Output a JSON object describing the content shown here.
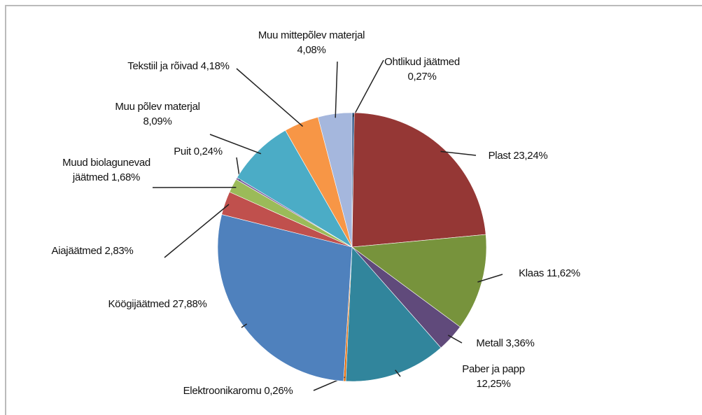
{
  "chart_data": {
    "type": "pie",
    "categories": [
      "Ohtlikud jäätmed",
      "Plast",
      "Klaas",
      "Metall",
      "Paber ja papp",
      "Elektroonikaromu",
      "Köögijäätmed",
      "Aiajäätmed",
      "Muud biolagunevad jäätmed",
      "Puit",
      "Muu põlev materjal",
      "Tekstiil ja rõivad",
      "Muu mittepõlev materjal"
    ],
    "values": [
      0.27,
      23.24,
      11.62,
      3.36,
      12.25,
      0.26,
      27.88,
      2.83,
      1.68,
      0.24,
      8.09,
      4.18,
      4.08
    ],
    "value_labels": [
      "0,27%",
      "23,24%",
      "11,62%",
      "3,36%",
      "12,25%",
      "0,26%",
      "27,88%",
      "2,83%",
      "1,68%",
      "0,24%",
      "8,09%",
      "4,18%",
      "4,08%"
    ],
    "colors": [
      "#1f497d",
      "#953735",
      "#77933c",
      "#604a7b",
      "#31859c",
      "#e46c0a",
      "#4f81bd",
      "#c0504d",
      "#9bbb59",
      "#8064a2",
      "#4bacc6",
      "#f79646",
      "#a5b7dd"
    ]
  }
}
